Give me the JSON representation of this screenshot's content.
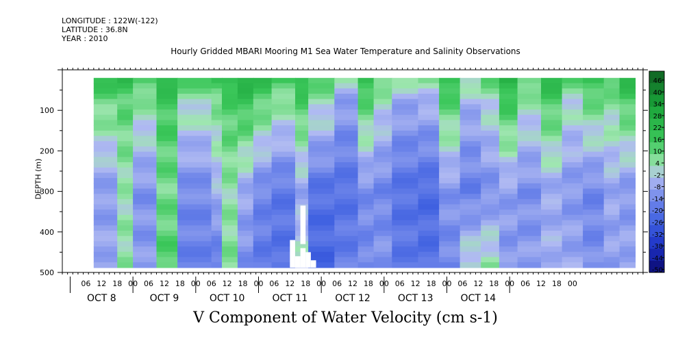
{
  "header": {
    "longitude": "LONGITUDE : 122W(-122)",
    "latitude": "LATITUDE : 36.8N",
    "year": "YEAR : 2010"
  },
  "chart_data": {
    "type": "heatmap",
    "title": "Hourly Gridded MBARI Mooring M1 Sea Water Temperature and Salinity Observations",
    "subtitle": "V Component of Water Velocity (cm s-1)",
    "ylabel": "DEPTH (m)",
    "ylim": [
      500,
      0
    ],
    "y_ticks": [
      100,
      200,
      300,
      400,
      500
    ],
    "x_hour_ticks": [
      "06",
      "12",
      "18",
      "00",
      "06",
      "12",
      "18",
      "00",
      "06",
      "12",
      "18",
      "00",
      "06",
      "12",
      "18",
      "00",
      "06",
      "12",
      "18",
      "00",
      "06",
      "12",
      "18",
      "00",
      "06",
      "12",
      "18",
      "00",
      "06",
      "12",
      "18",
      "00"
    ],
    "x_day_labels": [
      "OCT  8",
      "OCT  9",
      "OCT 10",
      "OCT 11",
      "OCT 12",
      "OCT 13",
      "OCT 14"
    ],
    "colorbar_ticks": [
      46,
      40,
      34,
      28,
      22,
      16,
      10,
      4,
      -2,
      -8,
      -14,
      -20,
      -26,
      -32,
      -38,
      -44,
      -50
    ],
    "colorbar_range": [
      -50,
      52
    ],
    "colors": {
      "strong_positive": "#0f5f21",
      "positive": "#2fc24c",
      "weak_positive": "#8fe6a3",
      "weak_negative": "#a9b4f0",
      "negative": "#5f7ee6",
      "strong_negative": "#0a0a6e"
    },
    "data_depth_range": [
      20,
      488
    ],
    "data_time_range_hours": [
      9,
      216
    ],
    "bands": [
      {
        "t0": 9,
        "t1": 18,
        "surface": 10,
        "mid": -9,
        "deep": -6
      },
      {
        "t0": 18,
        "t1": 24,
        "surface": 12,
        "mid": 4,
        "deep": 6
      },
      {
        "t0": 24,
        "t1": 33,
        "surface": 6,
        "mid": -11,
        "deep": -9
      },
      {
        "t0": 33,
        "t1": 41,
        "surface": 16,
        "mid": 9,
        "deep": 14
      },
      {
        "t0": 41,
        "t1": 54,
        "surface": 4,
        "mid": -13,
        "deep": -16
      },
      {
        "t0": 54,
        "t1": 58,
        "surface": 8,
        "mid": -4,
        "deep": -18
      },
      {
        "t0": 58,
        "t1": 64,
        "surface": 14,
        "mid": 5,
        "deep": 8
      },
      {
        "t0": 64,
        "t1": 70,
        "surface": 18,
        "mid": -6,
        "deep": -12
      },
      {
        "t0": 70,
        "t1": 77,
        "surface": 12,
        "mid": -14,
        "deep": -18
      },
      {
        "t0": 77,
        "t1": 86,
        "surface": 6,
        "mid": -18,
        "deep": -20
      },
      {
        "t0": 86,
        "t1": 91,
        "surface": 14,
        "mid": -6,
        "deep": 2
      },
      {
        "t0": 91,
        "t1": 101,
        "surface": 4,
        "mid": -20,
        "deep": -24
      },
      {
        "t0": 101,
        "t1": 110,
        "surface": -8,
        "mid": -20,
        "deep": -16
      },
      {
        "t0": 110,
        "t1": 116,
        "surface": 12,
        "mid": -12,
        "deep": -14
      },
      {
        "t0": 116,
        "t1": 123,
        "surface": 2,
        "mid": -14,
        "deep": -10
      },
      {
        "t0": 123,
        "t1": 133,
        "surface": -6,
        "mid": -20,
        "deep": -18
      },
      {
        "t0": 133,
        "t1": 141,
        "surface": -4,
        "mid": -22,
        "deep": -20
      },
      {
        "t0": 141,
        "t1": 149,
        "surface": 12,
        "mid": -10,
        "deep": -14
      },
      {
        "t0": 149,
        "t1": 157,
        "surface": -4,
        "mid": -16,
        "deep": 4
      },
      {
        "t0": 157,
        "t1": 164,
        "surface": 2,
        "mid": -12,
        "deep": 6
      },
      {
        "t0": 164,
        "t1": 171,
        "surface": 16,
        "mid": -8,
        "deep": -10
      },
      {
        "t0": 171,
        "t1": 180,
        "surface": 4,
        "mid": -12,
        "deep": -8
      },
      {
        "t0": 180,
        "t1": 188,
        "surface": 14,
        "mid": -6,
        "deep": -4
      },
      {
        "t0": 188,
        "t1": 196,
        "surface": 2,
        "mid": -10,
        "deep": -6
      },
      {
        "t0": 196,
        "t1": 204,
        "surface": 10,
        "mid": -14,
        "deep": -12
      },
      {
        "t0": 204,
        "t1": 210,
        "surface": 6,
        "mid": -6,
        "deep": -8
      },
      {
        "t0": 210,
        "t1": 216,
        "surface": 14,
        "mid": -10,
        "deep": -6
      }
    ],
    "gaps": [
      {
        "t0": 84,
        "t1": 86,
        "d0": 420,
        "d1": 488
      },
      {
        "t0": 86,
        "t1": 88,
        "d0": 460,
        "d1": 488
      },
      {
        "t0": 88,
        "t1": 90,
        "d0": 440,
        "d1": 488
      },
      {
        "t0": 88,
        "t1": 90,
        "d0": 335,
        "d1": 430
      },
      {
        "t0": 90,
        "t1": 92,
        "d0": 450,
        "d1": 488
      },
      {
        "t0": 92,
        "t1": 94,
        "d0": 470,
        "d1": 488
      }
    ]
  }
}
